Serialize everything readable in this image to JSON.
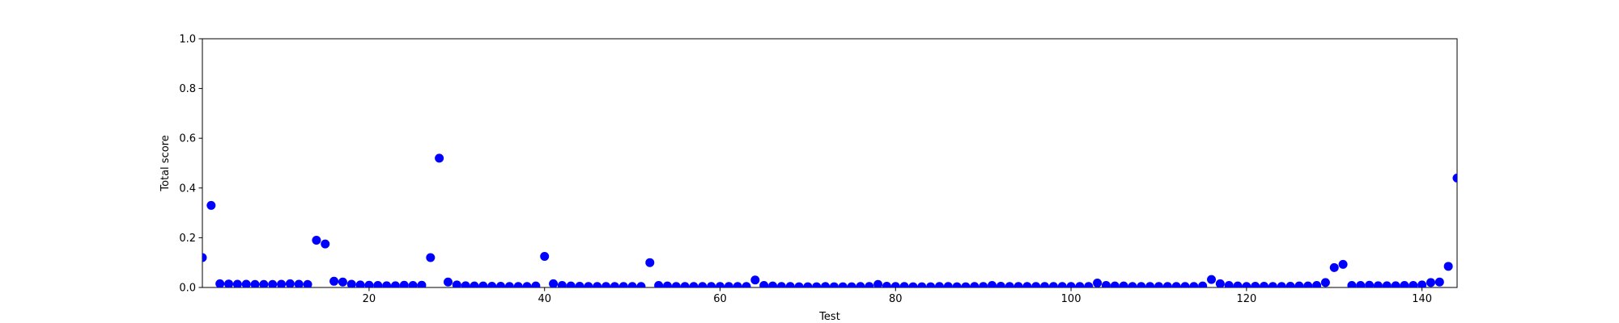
{
  "chart_data": {
    "type": "scatter",
    "x_label": "Test",
    "y_label": "Total score",
    "color": "#0000ff",
    "xlim": [
      1,
      144
    ],
    "xticks": [
      20,
      40,
      60,
      80,
      100,
      120,
      140
    ],
    "ylim": [
      0,
      1
    ],
    "yticks": [
      {
        "value": 0,
        "label": "0.0"
      },
      0.2,
      0.4,
      0.6,
      0.8,
      {
        "value": 1,
        "label": "1.0"
      }
    ],
    "x": [
      1,
      2,
      3,
      4,
      5,
      6,
      7,
      8,
      9,
      10,
      11,
      12,
      13,
      14,
      15,
      16,
      17,
      18,
      19,
      20,
      21,
      22,
      23,
      24,
      25,
      26,
      27,
      28,
      29,
      30,
      31,
      32,
      33,
      34,
      35,
      36,
      37,
      38,
      39,
      40,
      41,
      42,
      43,
      44,
      45,
      46,
      47,
      48,
      49,
      50,
      51,
      52,
      53,
      54,
      55,
      56,
      57,
      58,
      59,
      60,
      61,
      62,
      63,
      64,
      65,
      66,
      67,
      68,
      69,
      70,
      71,
      72,
      73,
      74,
      75,
      76,
      77,
      78,
      79,
      80,
      81,
      82,
      83,
      84,
      85,
      86,
      87,
      88,
      89,
      90,
      91,
      92,
      93,
      94,
      95,
      96,
      97,
      98,
      99,
      100,
      101,
      102,
      103,
      104,
      105,
      106,
      107,
      108,
      109,
      110,
      111,
      112,
      113,
      114,
      115,
      116,
      117,
      118,
      119,
      120,
      121,
      122,
      123,
      124,
      125,
      126,
      127,
      128,
      129,
      130,
      131,
      132,
      133,
      134,
      135,
      136,
      137,
      138,
      139,
      140,
      141,
      142,
      143,
      144
    ],
    "values": [
      0.12,
      0.33,
      0.015,
      0.014,
      0.013,
      0.013,
      0.012,
      0.012,
      0.012,
      0.013,
      0.015,
      0.013,
      0.012,
      0.19,
      0.175,
      0.025,
      0.022,
      0.013,
      0.01,
      0.009,
      0.008,
      0.007,
      0.007,
      0.009,
      0.008,
      0.009,
      0.12,
      0.52,
      0.022,
      0.01,
      0.007,
      0.006,
      0.006,
      0.005,
      0.005,
      0.004,
      0.004,
      0.004,
      0.006,
      0.125,
      0.015,
      0.008,
      0.006,
      0.005,
      0.004,
      0.004,
      0.004,
      0.004,
      0.004,
      0.004,
      0.004,
      0.1,
      0.008,
      0.006,
      0.004,
      0.004,
      0.004,
      0.004,
      0.004,
      0.004,
      0.004,
      0.004,
      0.004,
      0.03,
      0.008,
      0.006,
      0.004,
      0.004,
      0.003,
      0.003,
      0.003,
      0.004,
      0.003,
      0.003,
      0.003,
      0.004,
      0.004,
      0.012,
      0.005,
      0.004,
      0.004,
      0.003,
      0.003,
      0.003,
      0.004,
      0.004,
      0.003,
      0.003,
      0.004,
      0.004,
      0.008,
      0.005,
      0.004,
      0.004,
      0.004,
      0.004,
      0.004,
      0.004,
      0.004,
      0.004,
      0.004,
      0.004,
      0.018,
      0.008,
      0.006,
      0.006,
      0.004,
      0.004,
      0.004,
      0.004,
      0.004,
      0.004,
      0.004,
      0.004,
      0.006,
      0.032,
      0.015,
      0.008,
      0.006,
      0.004,
      0.005,
      0.005,
      0.004,
      0.004,
      0.005,
      0.006,
      0.006,
      0.008,
      0.02,
      0.08,
      0.093,
      0.008,
      0.008,
      0.009,
      0.007,
      0.007,
      0.007,
      0.008,
      0.008,
      0.01,
      0.02,
      0.022,
      0.085,
      0.44
    ]
  }
}
